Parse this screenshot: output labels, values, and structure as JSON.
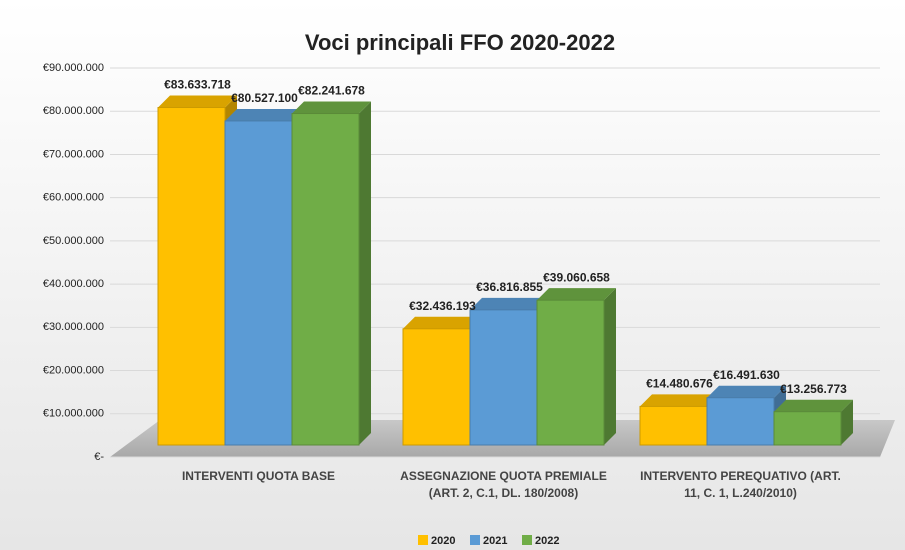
{
  "chart_data": {
    "type": "bar3d",
    "title": "Voci principali FFO 2020-2022",
    "categories": [
      "INTERVENTI QUOTA BASE",
      "ASSEGNAZIONE QUOTA PREMIALE (ART. 2, C.1, DL. 180/2008)",
      "INTERVENTO PEREQUATIVO (ART. 11, C. 1, L.240/2010)"
    ],
    "series": [
      {
        "name": "2020",
        "color": "#ffc000",
        "values": [
          83633718,
          32436193,
          14480676
        ],
        "value_labels": [
          "€83.633.718",
          "€32.436.193",
          "€14.480.676"
        ]
      },
      {
        "name": "2021",
        "color": "#5b9bd5",
        "values": [
          80527100,
          36816855,
          16491630
        ],
        "value_labels": [
          "€80.527.100",
          "€36.816.855",
          "€16.491.630"
        ]
      },
      {
        "name": "2022",
        "color": "#70ad47",
        "values": [
          82241678,
          39060658,
          13256773
        ],
        "value_labels": [
          "€82.241.678",
          "€39.060.658",
          "€13.256.773"
        ]
      }
    ],
    "ylim": [
      0,
      90000000
    ],
    "yticks": [
      {
        "value": 0,
        "label": "€-"
      },
      {
        "value": 10000000,
        "label": "€10.000.000"
      },
      {
        "value": 20000000,
        "label": "€20.000.000"
      },
      {
        "value": 30000000,
        "label": "€30.000.000"
      },
      {
        "value": 40000000,
        "label": "€40.000.000"
      },
      {
        "value": 50000000,
        "label": "€50.000.000"
      },
      {
        "value": 60000000,
        "label": "€60.000.000"
      },
      {
        "value": 70000000,
        "label": "€70.000.000"
      },
      {
        "value": 80000000,
        "label": "€80.000.000"
      },
      {
        "value": 90000000,
        "label": "€90.000.000"
      }
    ],
    "grid": true,
    "legend": "bottom"
  }
}
